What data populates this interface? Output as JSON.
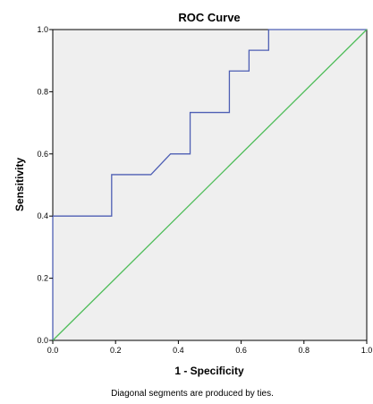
{
  "chart_data": {
    "type": "line",
    "title": "ROC Curve",
    "xlabel": "1 - Specificity",
    "ylabel": "Sensitivity",
    "xlim": [
      0,
      1
    ],
    "ylim": [
      0,
      1
    ],
    "x_ticks": [
      "0.0",
      "0.2",
      "0.4",
      "0.6",
      "0.8",
      "1.0"
    ],
    "y_ticks": [
      "0.0",
      "0.2",
      "0.4",
      "0.6",
      "0.8",
      "1.0"
    ],
    "grid": false,
    "legend": "none",
    "footnote": "Diagonal segments are produced by ties.",
    "series": [
      {
        "color": "#4e5fb4",
        "x": [
          0,
          0,
          0.1875,
          0.1875,
          0.3125,
          0.375,
          0.4375,
          0.4375,
          0.5625,
          0.5625,
          0.625,
          0.625,
          0.6875,
          0.6875,
          1.0
        ],
        "y": [
          0,
          0.4,
          0.4,
          0.5333,
          0.5333,
          0.6,
          0.6,
          0.7333,
          0.7333,
          0.8667,
          0.8667,
          0.9333,
          0.9333,
          1.0,
          1.0
        ]
      },
      {
        "color": "#4fbd5a",
        "x": [
          0,
          1
        ],
        "y": [
          0,
          1
        ]
      }
    ],
    "plot_background": "#efefef"
  }
}
